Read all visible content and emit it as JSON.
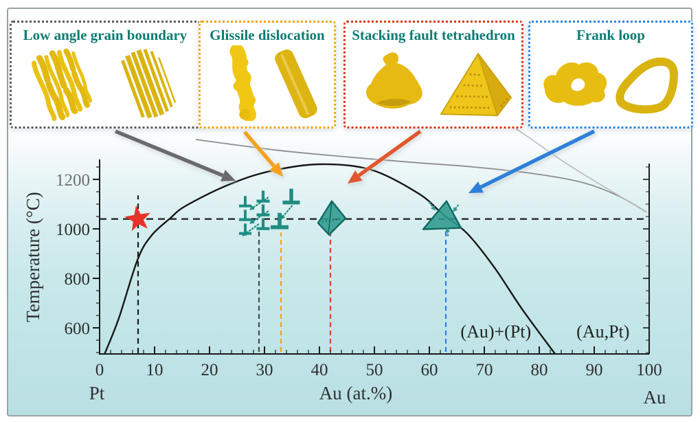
{
  "figure": {
    "frame_color": "#98a2a5",
    "background_top": "#ffffff",
    "background_bottom": "#b9dde1",
    "title_color": "#0c7c73",
    "gold_color": "#e9c215",
    "legend_boxes": [
      {
        "label": "Low angle grain boundary",
        "border_color": "#5c5c5c",
        "arrow_color": "#6a6a6a"
      },
      {
        "label": "Glissile dislocation",
        "border_color": "#f2a50a",
        "arrow_color": "#f6a11e"
      },
      {
        "label": "Stacking fault tetrahedron",
        "border_color": "#d6391e",
        "arrow_color": "#e0582e"
      },
      {
        "label": "Frank loop",
        "border_color": "#2e86de",
        "arrow_color": "#2d80d8"
      }
    ]
  },
  "chart_data": {
    "type": "line",
    "title": "",
    "xlabel": "Au (at.%)",
    "ylabel": "Temperature (°C)",
    "x_end_labels": {
      "left": "Pt",
      "right": "Au"
    },
    "xlim": [
      0,
      100
    ],
    "ylim": [
      495,
      1280
    ],
    "x_ticks": [
      0,
      10,
      20,
      30,
      40,
      50,
      60,
      70,
      80,
      90,
      100
    ],
    "y_ticks": [
      600,
      800,
      1000,
      1200
    ],
    "x_minor_step": 2,
    "y_minor_step": 50,
    "grid": false,
    "series": [
      {
        "name": "miscibility-gap-boundary",
        "color": "#161616",
        "points": [
          [
            0.9,
            494
          ],
          [
            3.5,
            639
          ],
          [
            6.9,
            875
          ],
          [
            9.4,
            972
          ],
          [
            12.8,
            1042
          ],
          [
            15.6,
            1092
          ],
          [
            23.1,
            1175
          ],
          [
            30.6,
            1231
          ],
          [
            40,
            1261
          ],
          [
            49.4,
            1239
          ],
          [
            58.1,
            1142
          ],
          [
            62.5,
            1058
          ],
          [
            66.9,
            981
          ],
          [
            71.9,
            842
          ],
          [
            76.9,
            675
          ],
          [
            82.9,
            494
          ]
        ]
      },
      {
        "name": "solidus",
        "color": "#8d8d8d",
        "points": [
          [
            17.5,
            1361
          ],
          [
            31.9,
            1319
          ],
          [
            44.4,
            1292
          ],
          [
            56.9,
            1269
          ],
          [
            68.1,
            1250
          ],
          [
            79.4,
            1222
          ],
          [
            88.1,
            1186
          ],
          [
            94.4,
            1133
          ],
          [
            99.6,
            1067
          ]
        ]
      },
      {
        "name": "liquidus",
        "color": "#b9b9b9",
        "points": [
          [
            68.1,
            1511
          ],
          [
            76.3,
            1397
          ],
          [
            84.4,
            1272
          ],
          [
            91.9,
            1169
          ],
          [
            99.6,
            1067
          ]
        ]
      }
    ],
    "annotations": {
      "dashed_lines": [
        {
          "name": "annealing-temperature-line",
          "orient": "h",
          "T": 1040,
          "x1": 0,
          "x2": 100,
          "color": "#1c1c1c",
          "dash": "10 7",
          "width": 2.3
        },
        {
          "name": "pt-7at-composition-line",
          "orient": "v",
          "x": 7,
          "T1": 497,
          "T2": 1135,
          "color": "#1c1c1c",
          "dash": "8 6",
          "width": 2.2
        },
        {
          "name": "lagb-composition-line",
          "orient": "v",
          "x": 29,
          "T1": 503,
          "T2": 1005,
          "color": "#4a4a4a",
          "dash": "7 5",
          "width": 2.2
        },
        {
          "name": "glissile-composition-line",
          "orient": "v",
          "x": 33,
          "T1": 503,
          "T2": 985,
          "color": "#f2a41f",
          "dash": "7 5",
          "width": 2.2
        },
        {
          "name": "sft-composition-line",
          "orient": "v",
          "x": 42,
          "T1": 503,
          "T2": 985,
          "color": "#cf4a2a",
          "dash": "7 5",
          "width": 2.2
        },
        {
          "name": "frank-loop-composition-line",
          "orient": "v",
          "x": 63,
          "T1": 503,
          "T2": 995,
          "color": "#2f7fd6",
          "dash": "7 5",
          "width": 2.2
        }
      ],
      "phase_labels": [
        {
          "text": "(Au)+(Pt)",
          "x": 72.1,
          "T": 586
        },
        {
          "text": "(Au,Pt)",
          "x": 91.6,
          "T": 586
        }
      ],
      "defects": [
        {
          "name": "initial-state-star",
          "x": 7,
          "T": 1040,
          "color": "#e63228"
        },
        {
          "name": "low-angle-grain-boundary",
          "x": 29,
          "T": 1040,
          "color": "#1f8d82"
        },
        {
          "name": "glissile-dislocation",
          "x": 33,
          "T": 1040,
          "color": "#1f8d82"
        },
        {
          "name": "stacking-fault-tetrahedron",
          "x": 42,
          "T": 1040,
          "color": "#2f9a90"
        },
        {
          "name": "frank-loop",
          "x": 63,
          "T": 1040,
          "color": "#2f9a90"
        }
      ]
    }
  }
}
